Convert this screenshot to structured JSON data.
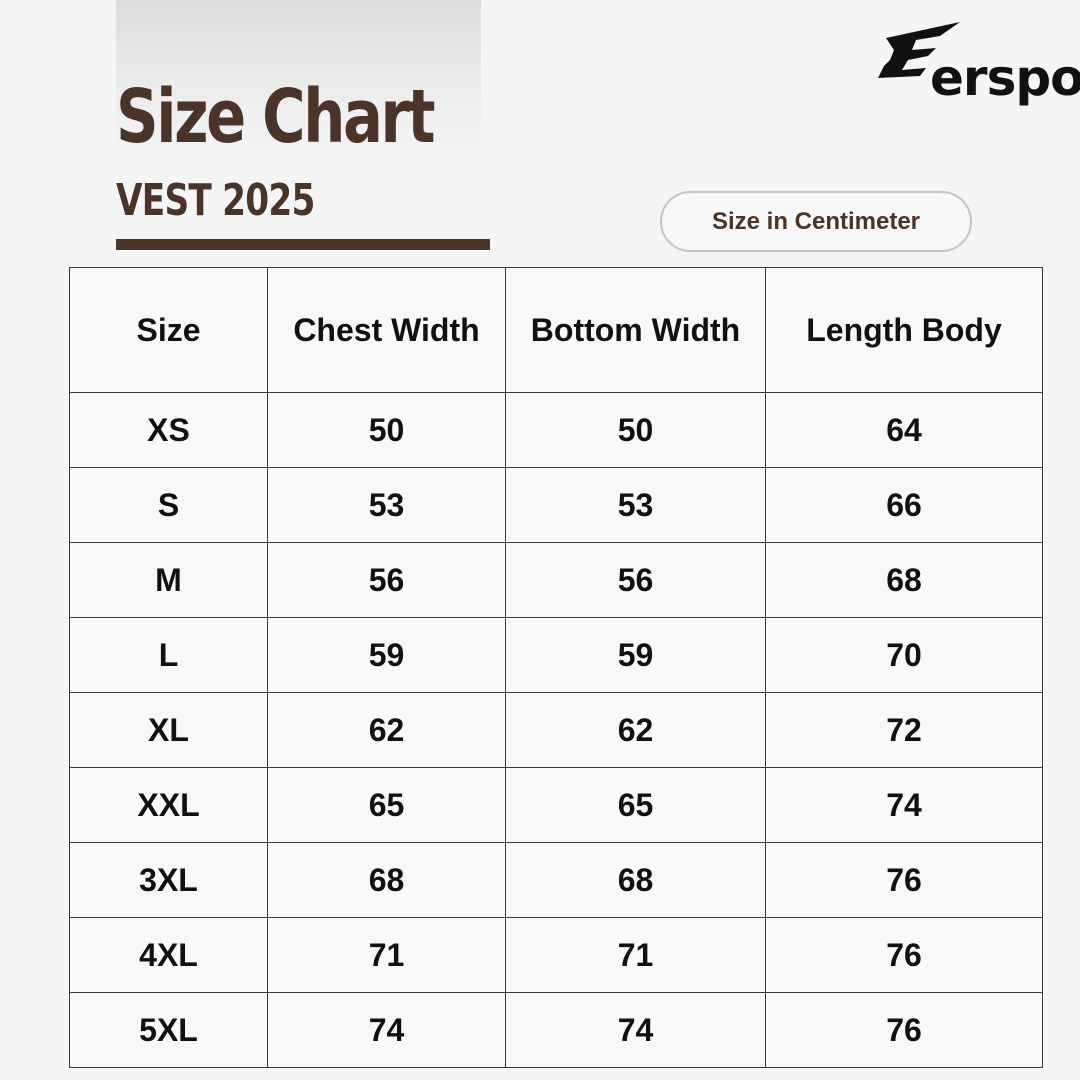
{
  "header": {
    "title": "Size Chart",
    "subtitle": "VEST 2025",
    "unit_label": "Size in Centimeter"
  },
  "brand": {
    "name": "erspo",
    "logo_icon": "erspo-wing-logo",
    "accent_color": "#4a3428"
  },
  "table": {
    "columns": [
      "Size",
      "Chest Width",
      "Bottom Width",
      "Length Body"
    ],
    "rows": [
      {
        "size": "XS",
        "chest": "50",
        "bottom": "50",
        "length": "64"
      },
      {
        "size": "S",
        "chest": "53",
        "bottom": "53",
        "length": "66"
      },
      {
        "size": "M",
        "chest": "56",
        "bottom": "56",
        "length": "68"
      },
      {
        "size": "L",
        "chest": "59",
        "bottom": "59",
        "length": "70"
      },
      {
        "size": "XL",
        "chest": "62",
        "bottom": "62",
        "length": "72"
      },
      {
        "size": "XXL",
        "chest": "65",
        "bottom": "65",
        "length": "74"
      },
      {
        "size": "3XL",
        "chest": "68",
        "bottom": "68",
        "length": "76"
      },
      {
        "size": "4XL",
        "chest": "71",
        "bottom": "71",
        "length": "76"
      },
      {
        "size": "5XL",
        "chest": "74",
        "bottom": "74",
        "length": "76"
      }
    ]
  }
}
